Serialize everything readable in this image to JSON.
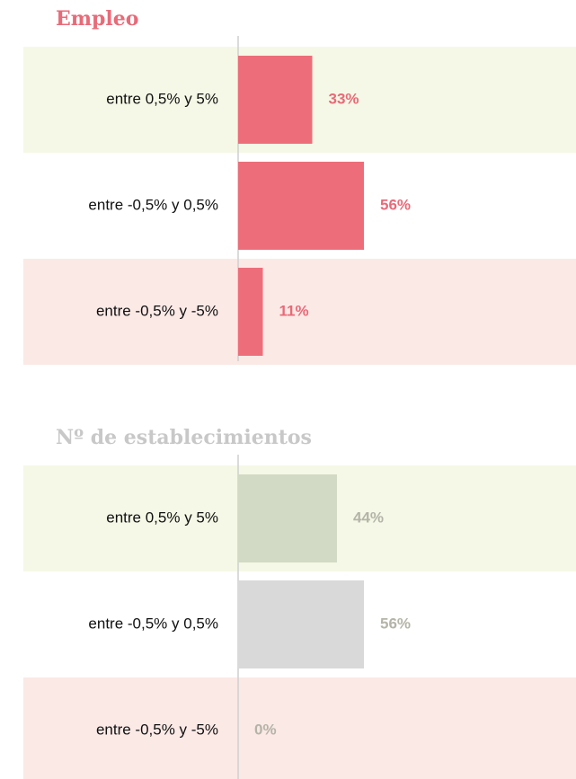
{
  "chart_data": [
    {
      "type": "bar",
      "title": "Empleo",
      "title_color": "#e96a78",
      "categories": [
        "entre 0,5% y 5%",
        "entre -0,5% y 0,5%",
        "entre -0,5% y -5%"
      ],
      "values": [
        33,
        56,
        11
      ],
      "value_labels": [
        "33%",
        "56%",
        "11%"
      ],
      "colors": [
        "#ed6e7a",
        "#ed6e7a",
        "#ed6e7a"
      ],
      "label_color": "#e96a78",
      "xlim": [
        0,
        100
      ]
    },
    {
      "type": "bar",
      "title": "Nº de establecimientos",
      "title_color": "#c8c8c8",
      "categories": [
        "entre 0,5% y 5%",
        "entre -0,5% y 0,5%",
        "entre -0,5% y -5%"
      ],
      "values": [
        44,
        56,
        0
      ],
      "value_labels": [
        "44%",
        "56%",
        "0%"
      ],
      "colors": [
        "#d2d9c4",
        "#d9d9d9",
        "#d9d9d9"
      ],
      "label_color": "#b4b4a8",
      "xlim": [
        0,
        100
      ]
    }
  ]
}
